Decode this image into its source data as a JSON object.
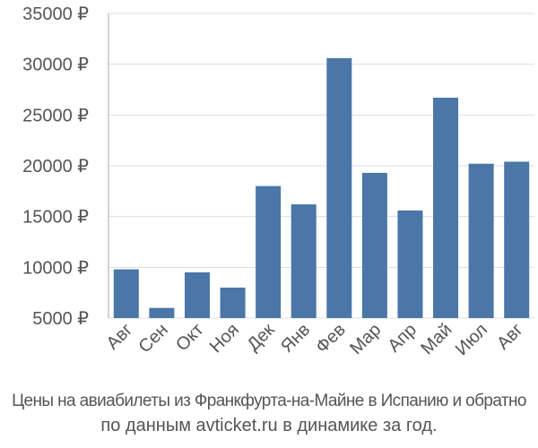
{
  "caption": {
    "line1": "Цены на авиабилеты из Франкфурта-на-Майне в Испанию и обратно",
    "line2": "по данным avticket.ru в динамике за год."
  },
  "colors": {
    "bar": "#4a76a8",
    "grid": "#dddddd",
    "text": "#555555"
  },
  "chart_data": {
    "type": "bar",
    "categories": [
      "Авг",
      "Сен",
      "Окт",
      "Ноя",
      "Дек",
      "Янв",
      "Фев",
      "Мар",
      "Апр",
      "Май",
      "Июл",
      "Авг"
    ],
    "values": [
      9800,
      6000,
      9500,
      8000,
      18000,
      16200,
      30600,
      19300,
      15600,
      26700,
      20200,
      20400
    ],
    "yticks": [
      "5000 ₽",
      "10000 ₽",
      "15000 ₽",
      "20000 ₽",
      "25000 ₽",
      "30000 ₽",
      "35000 ₽"
    ],
    "ytick_values": [
      5000,
      10000,
      15000,
      20000,
      25000,
      30000,
      35000
    ],
    "ylim": [
      5000,
      35000
    ],
    "grid": true
  }
}
